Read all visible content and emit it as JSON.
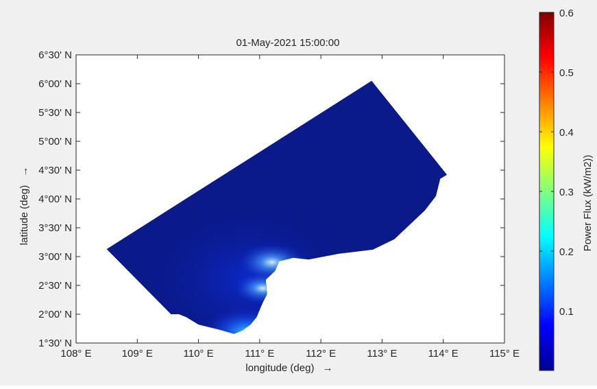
{
  "chart_data": {
    "type": "heatmap",
    "title": "01-May-2021 15:00:00",
    "xlabel": "longitude (deg)",
    "ylabel": "latitude (deg)",
    "arrow": "→",
    "xlim": [
      108,
      115
    ],
    "ylim": [
      1.5,
      6.5
    ],
    "xticks": [
      {
        "value": 108,
        "label": "108° E"
      },
      {
        "value": 109,
        "label": "109° E"
      },
      {
        "value": 110,
        "label": "110° E"
      },
      {
        "value": 111,
        "label": "111° E"
      },
      {
        "value": 112,
        "label": "112° E"
      },
      {
        "value": 113,
        "label": "113° E"
      },
      {
        "value": 114,
        "label": "114° E"
      },
      {
        "value": 115,
        "label": "115° E"
      }
    ],
    "yticks": [
      {
        "value": 1.5,
        "label": "1°30' N"
      },
      {
        "value": 2.0,
        "label": "2°00' N"
      },
      {
        "value": 2.5,
        "label": "2°30' N"
      },
      {
        "value": 3.0,
        "label": "3°00' N"
      },
      {
        "value": 3.5,
        "label": "3°30' N"
      },
      {
        "value": 4.0,
        "label": "4°00' N"
      },
      {
        "value": 4.5,
        "label": "4°30' N"
      },
      {
        "value": 5.0,
        "label": "5°00' N"
      },
      {
        "value": 5.5,
        "label": "5°30' N"
      },
      {
        "value": 6.0,
        "label": "6°00' N"
      },
      {
        "value": 6.5,
        "label": "6°30' N"
      }
    ],
    "domain_polygon": [
      [
        108.5,
        3.13
      ],
      [
        112.83,
        6.05
      ],
      [
        114.06,
        4.42
      ],
      [
        113.95,
        4.35
      ],
      [
        113.88,
        4.05
      ],
      [
        113.7,
        3.8
      ],
      [
        113.45,
        3.55
      ],
      [
        113.2,
        3.3
      ],
      [
        112.85,
        3.12
      ],
      [
        112.3,
        3.05
      ],
      [
        111.8,
        2.95
      ],
      [
        111.55,
        2.98
      ],
      [
        111.32,
        2.92
      ],
      [
        111.25,
        2.75
      ],
      [
        111.1,
        2.6
      ],
      [
        111.12,
        2.35
      ],
      [
        111.05,
        2.2
      ],
      [
        110.95,
        1.95
      ],
      [
        110.85,
        1.82
      ],
      [
        110.72,
        1.72
      ],
      [
        110.58,
        1.66
      ],
      [
        110.35,
        1.73
      ],
      [
        110.0,
        1.82
      ],
      [
        109.8,
        1.95
      ],
      [
        109.68,
        2.0
      ],
      [
        109.55,
        2.0
      ]
    ],
    "hotspots": [
      {
        "lon": 110.78,
        "lat": 1.7,
        "value": 0.28
      },
      {
        "lon": 111.2,
        "lat": 2.9,
        "value": 0.2
      },
      {
        "lon": 111.05,
        "lat": 2.45,
        "value": 0.15
      }
    ],
    "base_value": 0.01,
    "colorbar": {
      "label": "Power Flux (kW/m2))",
      "range": [
        0,
        0.6
      ],
      "ticks": [
        {
          "value": 0.1,
          "label": "0.1"
        },
        {
          "value": 0.2,
          "label": "0.2"
        },
        {
          "value": 0.3,
          "label": "0.3"
        },
        {
          "value": 0.4,
          "label": "0.4"
        },
        {
          "value": 0.5,
          "label": "0.5"
        },
        {
          "value": 0.6,
          "label": "0.6"
        }
      ],
      "colormap": "jet"
    }
  }
}
